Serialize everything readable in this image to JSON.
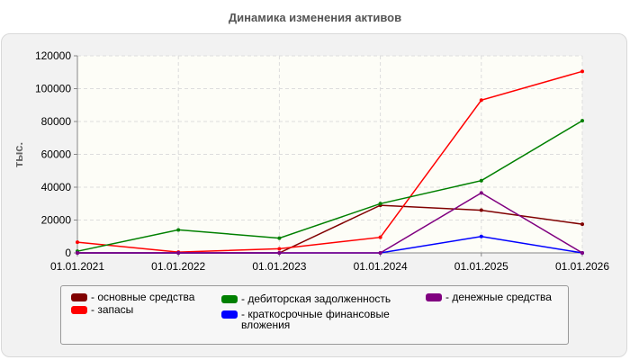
{
  "chart_data": {
    "type": "line",
    "title": "Динамика изменения активов",
    "ylabel": "тыс.",
    "xlabel": "",
    "x": [
      "01.01.2021",
      "01.01.2022",
      "01.01.2023",
      "01.01.2024",
      "01.01.2025",
      "01.01.2026"
    ],
    "ylim": [
      0,
      120000
    ],
    "yticks": [
      "0",
      "20000",
      "40000",
      "60000",
      "80000",
      "100000",
      "120000"
    ],
    "grid": true,
    "legend_position": "bottom",
    "series": [
      {
        "name": "- основные средства",
        "color": "#800000",
        "values": [
          0,
          0,
          0,
          29000,
          26000,
          17500
        ]
      },
      {
        "name": "- запасы",
        "color": "#ff0000",
        "values": [
          6500,
          500,
          2500,
          9500,
          93000,
          110500
        ]
      },
      {
        "name": "- дебиторская задолженность",
        "color": "#008000",
        "values": [
          1000,
          14000,
          9000,
          30000,
          44000,
          80500
        ]
      },
      {
        "name": "- краткосрочные финансовые вложения",
        "color": "#0000ff",
        "values": [
          0,
          0,
          0,
          0,
          10000,
          0
        ]
      },
      {
        "name": "- денежные средства",
        "color": "#800080",
        "values": [
          0,
          0,
          0,
          0,
          36500,
          0
        ]
      }
    ]
  }
}
